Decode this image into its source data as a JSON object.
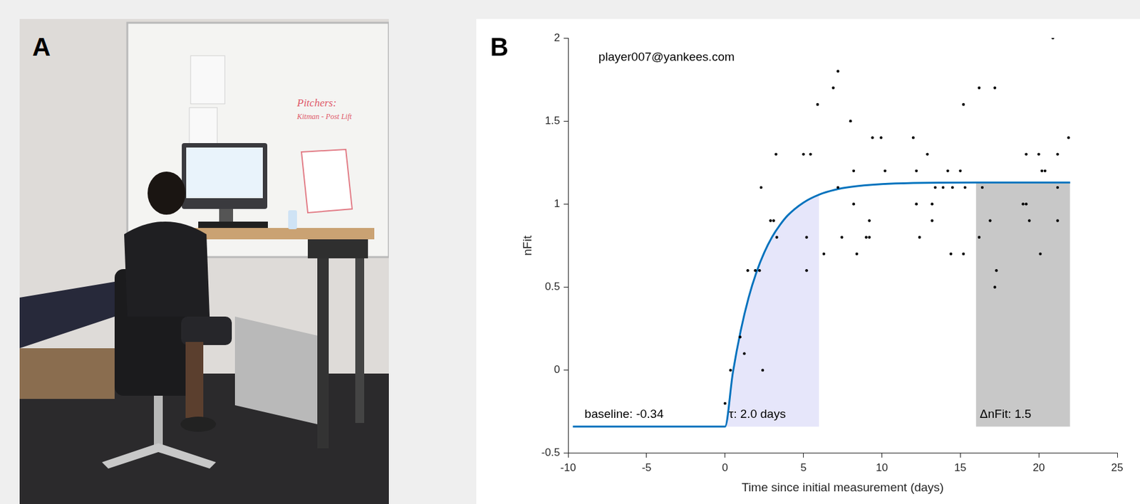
{
  "panel_a": {
    "letter": "A",
    "type": "photo",
    "whiteboard_texts": [
      "Pitchers:",
      "Kitman - Post Lift"
    ]
  },
  "chart_data": {
    "panel": "B",
    "type": "scatter",
    "title": "player007@yankees.com",
    "x_label": "Time since initial measurement (days)",
    "y_label": "nFit",
    "xlim": [
      -10,
      25
    ],
    "xticks": [
      -10,
      -5,
      0,
      5,
      10,
      15,
      20,
      25
    ],
    "ylim": [
      -0.5,
      2
    ],
    "yticks": [
      -0.5,
      0,
      0.5,
      1,
      1.5,
      2
    ],
    "grid": false,
    "baseline": {
      "value": -0.34,
      "label": "baseline: -0.34"
    },
    "regions": [
      {
        "x": [
          0,
          6
        ],
        "label": "τ: 2.0 days",
        "color": "#e6e6fa"
      },
      {
        "x": [
          16,
          22
        ],
        "label": "ΔnFit: 1.5",
        "color": "#c8c8c8"
      }
    ],
    "series": [
      {
        "type": "scatter",
        "marker": "dot",
        "color": "#000000",
        "x": [
          0,
          0.35,
          0.96,
          1.23,
          1.45,
          1.93,
          2.2,
          2.3,
          2.4,
          2.9,
          3.1,
          3.25,
          3.3,
          5.0,
          5.45,
          5.2,
          5.2,
          5.9,
          6.3,
          6.9,
          7.2,
          7.2,
          7.45,
          8.0,
          8.2,
          8.2,
          8.4,
          9.0,
          9.2,
          9.2,
          9.4,
          9.95,
          10.2,
          12.0,
          12.2,
          12.2,
          12.4,
          12.9,
          13.2,
          13.2,
          13.4,
          13.9,
          14.2,
          14.4,
          14.5,
          15.0,
          15.2,
          15.2,
          15.3,
          16.2,
          16.2,
          16.4,
          16.9,
          17.2,
          17.3,
          17.2,
          19.0,
          19.2,
          19.2,
          19.4,
          20.0,
          20.2,
          20.4,
          20.1,
          20.9,
          21.2,
          21.2,
          21.2,
          21.9
        ],
        "values": [
          -0.2,
          0.0,
          0.2,
          0.1,
          0.6,
          0.6,
          0.6,
          1.1,
          0.0,
          0.9,
          0.9,
          1.3,
          0.8,
          1.3,
          1.3,
          0.8,
          0.6,
          1.6,
          0.7,
          1.7,
          1.8,
          1.1,
          0.8,
          1.5,
          1.2,
          1.0,
          0.7,
          0.8,
          0.9,
          0.8,
          1.4,
          1.4,
          1.2,
          1.4,
          1.2,
          1.0,
          0.8,
          1.3,
          1.0,
          0.9,
          1.1,
          1.1,
          1.2,
          0.7,
          1.1,
          1.2,
          0.7,
          1.6,
          1.1,
          1.7,
          0.8,
          1.1,
          0.9,
          1.7,
          0.6,
          0.5,
          1.0,
          1.0,
          1.3,
          0.9,
          1.3,
          1.2,
          1.2,
          0.7,
          2.0,
          1.3,
          1.1,
          0.9,
          1.4
        ]
      },
      {
        "type": "line",
        "line_style": "solid",
        "color": "#0072bd",
        "x": [
          -9.7,
          0,
          0.5,
          1,
          1.5,
          2,
          2.5,
          3,
          3.5,
          4,
          5,
          6,
          7,
          8,
          10,
          12,
          16,
          22
        ],
        "values": [
          -0.34,
          -0.34,
          -0.015,
          0.238,
          0.436,
          0.589,
          0.708,
          0.802,
          0.874,
          0.932,
          1.009,
          1.057,
          1.086,
          1.103,
          1.12,
          1.127,
          1.13,
          1.13
        ]
      }
    ]
  }
}
